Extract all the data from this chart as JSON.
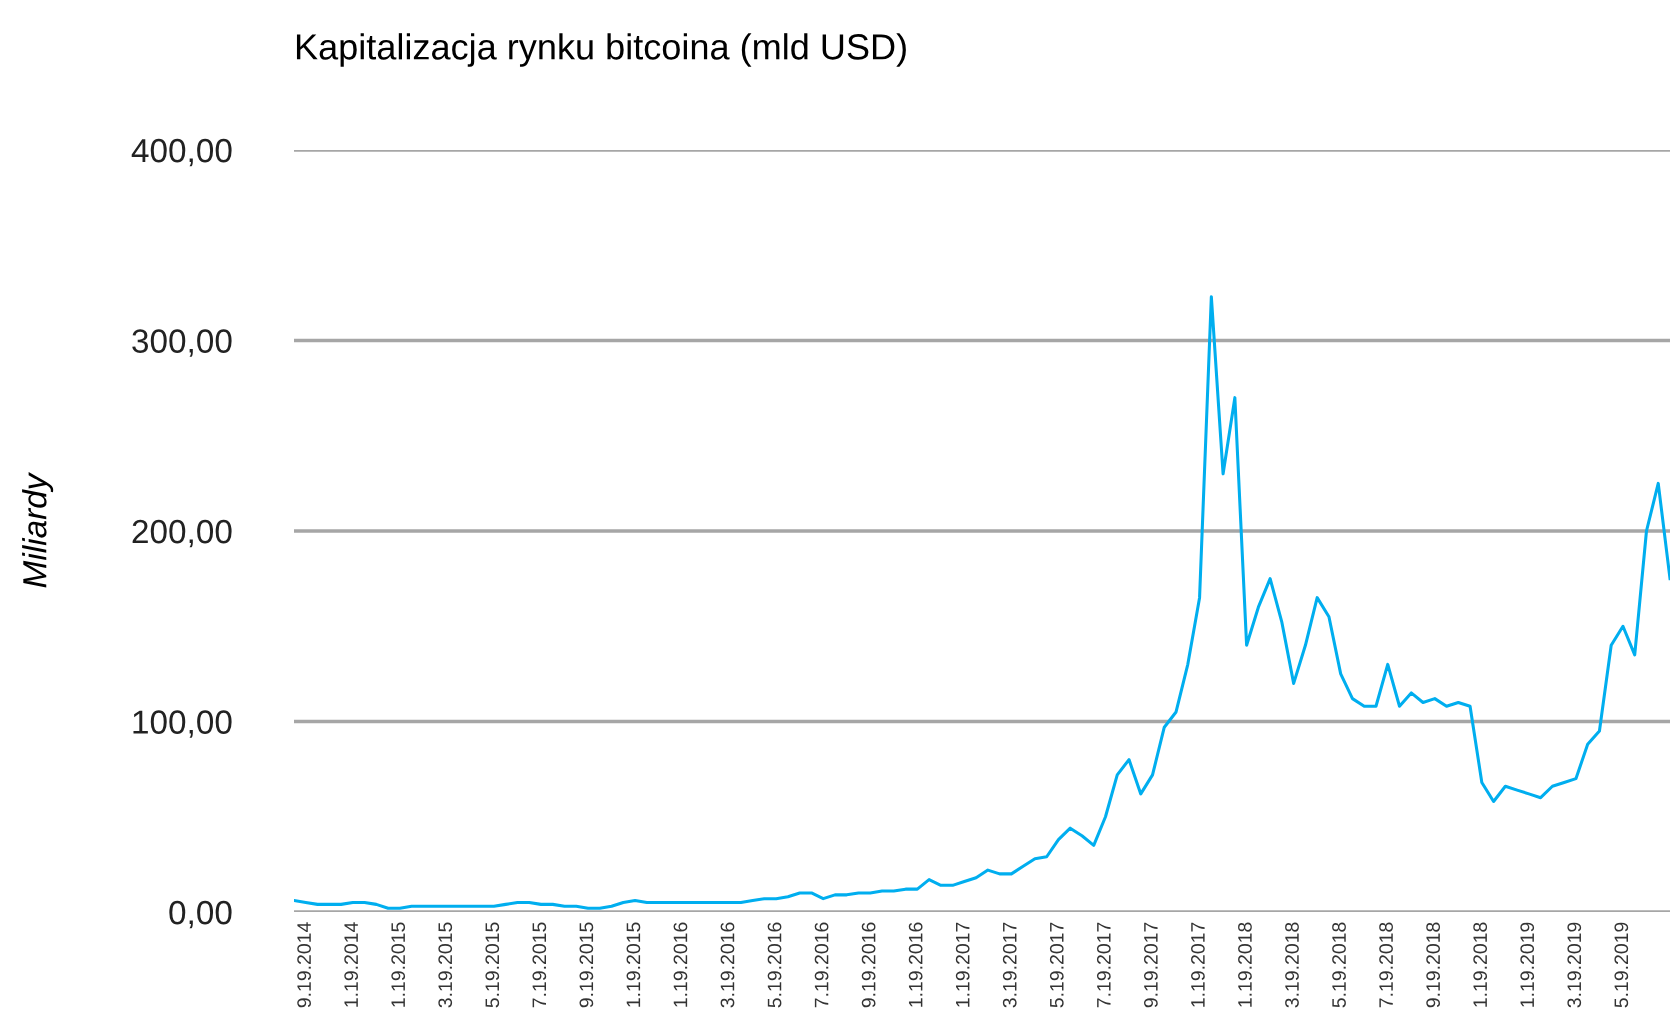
{
  "chart_data": {
    "type": "line",
    "title": "Kapitalizacja rynku bitcoina (mld USD)",
    "ylabel": "Miliardy",
    "categories": [
      null,
      "9.19.2014",
      null,
      null,
      null,
      "1.19.2014",
      null,
      null,
      null,
      "1.19.2015",
      null,
      null,
      null,
      "3.19.2015",
      null,
      null,
      null,
      "5.19.2015",
      null,
      null,
      null,
      "7.19.2015",
      null,
      null,
      null,
      "9.19.2015",
      null,
      null,
      null,
      "1.19.2015",
      null,
      null,
      null,
      "1.19.2016",
      null,
      null,
      null,
      "3.19.2016",
      null,
      null,
      null,
      "5.19.2016",
      null,
      null,
      null,
      "7.19.2016",
      null,
      null,
      null,
      "9.19.2016",
      null,
      null,
      null,
      "1.19.2016",
      null,
      null,
      null,
      "1.19.2017",
      null,
      null,
      null,
      "3.19.2017",
      null,
      null,
      null,
      "5.19.2017",
      null,
      null,
      null,
      "7.19.2017",
      null,
      null,
      null,
      "9.19.2017",
      null,
      null,
      null,
      "1.19.2017",
      null,
      null,
      null,
      "1.19.2018",
      null,
      null,
      null,
      "3.19.2018",
      null,
      null,
      null,
      "5.19.2018",
      null,
      null,
      null,
      "7.19.2018",
      null,
      null,
      null,
      "9.19.2018",
      null,
      null,
      null,
      "1.19.2018",
      null,
      null,
      null,
      "1.19.2019",
      null,
      null,
      null,
      "3.19.2019",
      null,
      null,
      null,
      "5.19.2019",
      null,
      null,
      null,
      null
    ],
    "series": [
      {
        "color": "#00aeef",
        "values": [
          6,
          5,
          4,
          4,
          4,
          5,
          5,
          4,
          2,
          2,
          3,
          3,
          3,
          3,
          3,
          3,
          3,
          3,
          4,
          5,
          5,
          4,
          4,
          3,
          3,
          2,
          2,
          3,
          5,
          6,
          5,
          5,
          5,
          5,
          5,
          5,
          5,
          5,
          5,
          6,
          7,
          7,
          8,
          10,
          10,
          7,
          9,
          9,
          10,
          10,
          11,
          11,
          12,
          12,
          17,
          14,
          14,
          16,
          18,
          22,
          20,
          20,
          24,
          28,
          29,
          38,
          44,
          40,
          35,
          50,
          72,
          80,
          62,
          72,
          97,
          105,
          130,
          165,
          323,
          230,
          270,
          140,
          160,
          175,
          152,
          120,
          140,
          165,
          155,
          125,
          112,
          108,
          108,
          130,
          108,
          115,
          110,
          112,
          108,
          110,
          108,
          68,
          58,
          66,
          64,
          62,
          60,
          66,
          68,
          70,
          88,
          95,
          140,
          150,
          135,
          200,
          225,
          175
        ]
      }
    ],
    "ylim": [
      0,
      400
    ],
    "yticks": [
      {
        "value": 0,
        "label": "0,00"
      },
      {
        "value": 100,
        "label": "100,00"
      },
      {
        "value": 200,
        "label": "200,00"
      },
      {
        "value": 300,
        "label": "300,00"
      },
      {
        "value": 400,
        "label": "400,00"
      }
    ],
    "grid": "y",
    "legend": false,
    "marker": "none",
    "line_style": "solid"
  }
}
